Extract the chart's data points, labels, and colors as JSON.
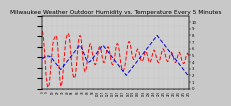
{
  "title": "Milwaukee Weather Outdoor Humidity vs. Temperature Every 5 Minutes",
  "title_fontsize": 4.2,
  "bg_color": "#c8c8c8",
  "plot_bg_color": "#d0d0d0",
  "grid_color": "#b0b0b0",
  "red_line_color": "#ff0000",
  "blue_line_color": "#0000dd",
  "temp_ylim": [
    20,
    90
  ],
  "hum_ylim": [
    0,
    110
  ],
  "right_yticks": [
    0,
    10,
    20,
    30,
    40,
    50,
    60,
    70,
    80,
    90,
    100
  ],
  "right_ytick_labels": [
    "0",
    "1",
    "2",
    "3",
    "4",
    "5",
    "6",
    "7",
    "8",
    "9",
    "10"
  ],
  "temp_data": [
    75,
    72,
    68,
    62,
    55,
    48,
    40,
    32,
    28,
    24,
    22,
    21,
    22,
    24,
    28,
    34,
    40,
    46,
    52,
    57,
    62,
    65,
    67,
    68,
    69,
    70,
    71,
    70,
    68,
    64,
    58,
    50,
    42,
    34,
    28,
    24,
    22,
    23,
    26,
    30,
    36,
    42,
    48,
    54,
    60,
    65,
    68,
    70,
    71,
    72,
    73,
    72,
    70,
    66,
    60,
    54,
    48,
    42,
    38,
    34,
    32,
    30,
    30,
    31,
    33,
    37,
    42,
    48,
    54,
    60,
    65,
    68,
    70,
    71,
    70,
    68,
    64,
    58,
    52,
    46,
    42,
    39,
    37,
    36,
    37,
    39,
    42,
    46,
    50,
    54,
    57,
    60,
    62,
    63,
    62,
    60,
    57,
    54,
    51,
    48,
    46,
    44,
    43,
    43,
    44,
    46,
    48,
    51,
    54,
    57,
    59,
    60,
    60,
    59,
    57,
    54,
    51,
    48,
    46,
    45,
    45,
    46,
    48,
    51,
    54,
    57,
    59,
    60,
    60,
    59,
    57,
    54,
    51,
    48,
    46,
    44,
    43,
    43,
    44,
    46,
    49,
    52,
    56,
    59,
    62,
    63,
    63,
    62,
    60,
    57,
    53,
    49,
    45,
    42,
    40,
    38,
    37,
    37,
    38,
    39,
    41,
    44,
    47,
    51,
    55,
    59,
    62,
    64,
    65,
    65,
    64,
    62,
    59,
    56,
    53,
    51,
    49,
    48,
    48,
    49,
    50,
    52,
    54,
    56,
    57,
    58,
    57,
    56,
    54,
    52,
    50,
    48,
    47,
    46,
    46,
    47,
    48,
    50,
    52,
    54,
    55,
    56,
    55,
    54,
    52,
    50,
    48,
    46,
    45,
    45,
    46,
    47,
    49,
    51,
    53,
    55,
    56,
    57,
    56,
    55,
    53,
    51,
    49,
    47,
    46,
    45,
    45,
    46,
    47,
    49,
    51,
    53,
    55,
    57,
    58,
    58,
    57,
    56,
    54,
    52,
    50,
    48,
    47,
    46,
    46,
    47,
    48,
    50,
    52,
    53,
    54,
    55,
    54,
    53,
    51,
    49,
    47,
    46,
    45,
    45,
    46,
    47,
    49,
    51,
    53,
    54,
    55,
    54,
    53,
    51,
    49,
    47,
    46,
    45,
    44,
    44,
    45,
    46,
    48,
    50,
    52,
    53,
    54,
    53,
    52,
    50
  ],
  "hum_data": [
    45,
    46,
    46,
    47,
    47,
    48,
    48,
    48,
    49,
    49,
    49,
    49,
    49,
    49,
    48,
    48,
    47,
    47,
    46,
    45,
    44,
    43,
    42,
    41,
    40,
    39,
    38,
    37,
    36,
    35,
    34,
    33,
    32,
    31,
    30,
    29,
    29,
    30,
    31,
    32,
    33,
    34,
    35,
    36,
    37,
    38,
    39,
    40,
    41,
    42,
    43,
    44,
    45,
    46,
    47,
    48,
    49,
    50,
    51,
    52,
    53,
    54,
    55,
    56,
    57,
    58,
    59,
    60,
    61,
    62,
    63,
    64,
    65,
    65,
    64,
    63,
    62,
    60,
    58,
    56,
    54,
    52,
    50,
    48,
    46,
    44,
    43,
    42,
    41,
    40,
    40,
    40,
    41,
    41,
    42,
    43,
    44,
    45,
    46,
    47,
    48,
    49,
    50,
    51,
    52,
    53,
    54,
    55,
    56,
    57,
    58,
    59,
    60,
    61,
    62,
    63,
    64,
    65,
    65,
    64,
    63,
    62,
    61,
    60,
    59,
    58,
    57,
    56,
    55,
    54,
    53,
    52,
    51,
    50,
    49,
    48,
    47,
    46,
    45,
    44,
    43,
    42,
    41,
    40,
    39,
    38,
    37,
    36,
    35,
    34,
    33,
    32,
    31,
    30,
    29,
    28,
    27,
    26,
    25,
    24,
    23,
    22,
    21,
    20,
    21,
    22,
    23,
    24,
    25,
    26,
    27,
    28,
    29,
    30,
    31,
    32,
    33,
    34,
    35,
    36,
    37,
    38,
    39,
    40,
    41,
    42,
    43,
    44,
    45,
    46,
    47,
    48,
    49,
    50,
    51,
    52,
    53,
    54,
    55,
    56,
    57,
    58,
    59,
    60,
    61,
    62,
    63,
    64,
    65,
    66,
    67,
    68,
    69,
    70,
    71,
    72,
    73,
    74,
    75,
    76,
    77,
    78,
    79,
    80,
    79,
    78,
    77,
    76,
    75,
    74,
    73,
    72,
    71,
    70,
    69,
    68,
    67,
    66,
    65,
    64,
    63,
    62,
    61,
    60,
    59,
    58,
    57,
    56,
    55,
    54,
    53,
    52,
    51,
    50,
    49,
    48,
    47,
    46,
    45,
    44,
    43,
    42,
    41,
    40,
    39,
    38,
    37,
    36,
    35,
    34,
    33,
    32,
    31,
    30,
    29,
    28,
    27,
    26,
    25,
    24,
    23,
    22,
    21,
    20,
    19,
    18
  ]
}
